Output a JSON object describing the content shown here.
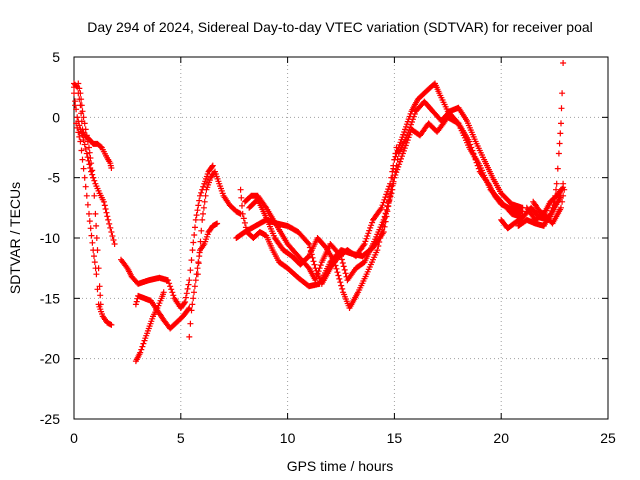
{
  "chart_data": {
    "type": "scatter",
    "title": "Day 294 of 2024, Sidereal Day-to-day VTEC variation (SDTVAR) for receiver poal",
    "xlabel": "GPS time / hours",
    "ylabel": "SDTVAR / TECUs",
    "xlim": [
      0,
      25
    ],
    "ylim": [
      -25,
      5
    ],
    "xticks": [
      0,
      5,
      10,
      15,
      20,
      25
    ],
    "yticks": [
      -25,
      -20,
      -15,
      -10,
      -5,
      0,
      5
    ],
    "grid": true,
    "marker": "+",
    "series": [
      {
        "name": "SDTVAR",
        "color": "#ff0000",
        "tracks": [
          [
            [
              0.0,
              2.8
            ],
            [
              0.15,
              2.5
            ],
            [
              0.3,
              1.0
            ],
            [
              0.4,
              -1.0
            ],
            [
              0.5,
              -1.5
            ],
            [
              0.7,
              -1.8
            ],
            [
              0.9,
              -2.2
            ],
            [
              1.1,
              -2.2
            ],
            [
              1.3,
              -2.5
            ],
            [
              1.5,
              -3.2
            ],
            [
              1.7,
              -3.8
            ],
            [
              1.75,
              -4.2
            ]
          ],
          [
            [
              0.0,
              2.5
            ],
            [
              0.1,
              -0.5
            ],
            [
              0.3,
              -2.0
            ],
            [
              0.5,
              -5.0
            ],
            [
              0.7,
              -8.0
            ],
            [
              0.9,
              -11.0
            ],
            [
              1.05,
              -13.0
            ],
            [
              1.15,
              -15.5
            ],
            [
              1.35,
              -16.5
            ],
            [
              1.55,
              -17.0
            ],
            [
              1.75,
              -17.2
            ]
          ],
          [
            [
              0.0,
              2.0
            ],
            [
              0.15,
              0.0
            ],
            [
              0.3,
              -1.0
            ],
            [
              0.4,
              -1.5
            ],
            [
              0.6,
              -3.0
            ],
            [
              0.8,
              -4.5
            ],
            [
              1.0,
              -5.5
            ],
            [
              1.2,
              -6.3
            ],
            [
              1.4,
              -7.0
            ],
            [
              1.6,
              -8.5
            ],
            [
              1.9,
              -10.5
            ]
          ],
          [
            [
              0.2,
              2.8
            ],
            [
              0.3,
              2.0
            ],
            [
              0.4,
              0.5
            ],
            [
              0.5,
              -0.5
            ],
            [
              0.6,
              -1.5
            ],
            [
              0.7,
              -2.5
            ],
            [
              0.8,
              -3.8
            ],
            [
              0.9,
              -5.0
            ],
            [
              1.0,
              -8.0
            ],
            [
              1.1,
              -11.0
            ],
            [
              1.2,
              -14.0
            ],
            [
              1.25,
              -15.5
            ]
          ],
          [
            [
              2.2,
              -11.8
            ],
            [
              2.5,
              -12.5
            ],
            [
              2.7,
              -13.2
            ],
            [
              3.0,
              -13.8
            ],
            [
              3.5,
              -13.5
            ],
            [
              4.0,
              -13.3
            ],
            [
              4.4,
              -13.5
            ],
            [
              4.7,
              -15.0
            ],
            [
              5.0,
              -15.8
            ],
            [
              5.2,
              -15.3
            ],
            [
              5.4,
              -13.5
            ],
            [
              5.55,
              -11.0
            ],
            [
              5.7,
              -8.5
            ],
            [
              5.9,
              -6.5
            ],
            [
              6.1,
              -5.5
            ],
            [
              6.3,
              -4.5
            ],
            [
              6.5,
              -4.0
            ]
          ],
          [
            [
              2.9,
              -15.5
            ],
            [
              3.0,
              -14.8
            ],
            [
              3.3,
              -15.0
            ],
            [
              3.6,
              -15.2
            ],
            [
              3.9,
              -16.0
            ],
            [
              4.2,
              -16.8
            ],
            [
              4.5,
              -17.5
            ],
            [
              4.8,
              -17.0
            ],
            [
              5.1,
              -16.5
            ],
            [
              5.4,
              -15.8
            ]
          ],
          [
            [
              2.9,
              -20.2
            ],
            [
              3.1,
              -19.5
            ],
            [
              3.3,
              -18.5
            ],
            [
              3.5,
              -17.5
            ],
            [
              3.7,
              -16.5
            ],
            [
              3.9,
              -15.8
            ],
            [
              4.1,
              -15.0
            ],
            [
              4.2,
              -14.5
            ]
          ],
          [
            [
              5.4,
              -18.2
            ],
            [
              5.5,
              -16.0
            ],
            [
              5.7,
              -13.5
            ],
            [
              5.9,
              -11.0
            ],
            [
              6.1,
              -10.5
            ],
            [
              6.3,
              -9.5
            ],
            [
              6.5,
              -9.0
            ],
            [
              6.7,
              -8.8
            ]
          ],
          [
            [
              5.8,
              -13.0
            ],
            [
              6.0,
              -8.5
            ],
            [
              6.2,
              -6.0
            ],
            [
              6.4,
              -5.0
            ],
            [
              6.6,
              -4.5
            ],
            [
              6.8,
              -5.5
            ],
            [
              7.0,
              -6.5
            ],
            [
              7.3,
              -7.3
            ],
            [
              7.6,
              -7.8
            ],
            [
              7.8,
              -8.0
            ]
          ],
          [
            [
              7.8,
              -6.0
            ],
            [
              7.9,
              -8.0
            ],
            [
              8.1,
              -9.5
            ],
            [
              8.4,
              -10.0
            ],
            [
              8.7,
              -9.5
            ],
            [
              9.0,
              -9.8
            ],
            [
              9.3,
              -11.0
            ],
            [
              9.6,
              -12.0
            ],
            [
              10.0,
              -12.5
            ],
            [
              10.5,
              -13.3
            ],
            [
              11.0,
              -14.0
            ],
            [
              11.5,
              -13.8
            ],
            [
              12.0,
              -12.0
            ],
            [
              12.5,
              -11.0
            ],
            [
              13.0,
              -11.3
            ],
            [
              13.5,
              -11.5
            ],
            [
              14.0,
              -10.8
            ],
            [
              14.5,
              -9.5
            ],
            [
              14.8,
              -6.5
            ],
            [
              15.0,
              -3.5
            ],
            [
              15.2,
              -2.5
            ],
            [
              15.5,
              -1.0
            ],
            [
              15.8,
              0.5
            ],
            [
              16.1,
              1.5
            ],
            [
              16.4,
              2.0
            ],
            [
              16.7,
              2.5
            ],
            [
              16.9,
              2.8
            ],
            [
              17.1,
              2.0
            ],
            [
              17.5,
              0.5
            ],
            [
              18.0,
              -0.5
            ],
            [
              18.5,
              -2.0
            ],
            [
              19.0,
              -4.5
            ],
            [
              19.4,
              -5.5
            ],
            [
              19.7,
              -6.5
            ],
            [
              20.0,
              -7.2
            ],
            [
              20.5,
              -7.6
            ],
            [
              21.0,
              -7.8
            ]
          ],
          [
            [
              8.0,
              -7.0
            ],
            [
              8.3,
              -6.5
            ],
            [
              8.6,
              -6.5
            ],
            [
              9.0,
              -7.5
            ],
            [
              9.5,
              -9.0
            ],
            [
              10.0,
              -10.5
            ],
            [
              10.5,
              -11.5
            ],
            [
              11.0,
              -12.5
            ],
            [
              11.3,
              -13.5
            ],
            [
              11.6,
              -12.0
            ],
            [
              12.0,
              -10.5
            ],
            [
              12.5,
              -11.5
            ],
            [
              12.8,
              -13.5
            ],
            [
              13.2,
              -12.5
            ],
            [
              13.6,
              -12.0
            ],
            [
              14.0,
              -10.5
            ],
            [
              14.5,
              -8.5
            ],
            [
              14.9,
              -6.0
            ],
            [
              15.2,
              -3.0
            ],
            [
              15.6,
              -1.5
            ],
            [
              16.0,
              0.5
            ],
            [
              16.4,
              1.3
            ],
            [
              16.8,
              0.5
            ],
            [
              17.2,
              -0.3
            ],
            [
              17.6,
              0.5
            ],
            [
              18.0,
              0.8
            ],
            [
              18.4,
              -0.3
            ],
            [
              18.8,
              -2.0
            ],
            [
              19.2,
              -3.5
            ],
            [
              19.6,
              -5.0
            ],
            [
              20.0,
              -6.3
            ],
            [
              20.5,
              -7.2
            ],
            [
              21.0,
              -7.5
            ]
          ],
          [
            [
              8.2,
              -7.5
            ],
            [
              8.6,
              -6.8
            ],
            [
              9.0,
              -8.3
            ],
            [
              9.4,
              -10.0
            ],
            [
              9.8,
              -11.0
            ],
            [
              10.2,
              -11.5
            ],
            [
              10.6,
              -12.2
            ],
            [
              11.0,
              -11.5
            ],
            [
              11.4,
              -10.0
            ],
            [
              11.8,
              -10.8
            ],
            [
              12.2,
              -12.0
            ],
            [
              12.6,
              -14.5
            ],
            [
              12.9,
              -15.8
            ],
            [
              13.3,
              -14.5
            ],
            [
              13.7,
              -13.0
            ],
            [
              14.2,
              -11.0
            ],
            [
              14.6,
              -8.0
            ],
            [
              15.0,
              -5.0
            ],
            [
              15.4,
              -3.0
            ],
            [
              15.8,
              -1.0
            ],
            [
              16.2,
              -1.5
            ],
            [
              16.6,
              -0.5
            ],
            [
              17.0,
              -1.2
            ],
            [
              17.5,
              0.0
            ],
            [
              18.0,
              -0.5
            ],
            [
              18.5,
              -2.5
            ],
            [
              19.0,
              -4.0
            ],
            [
              19.5,
              -6.0
            ],
            [
              20.0,
              -7.0
            ],
            [
              20.5,
              -8.0
            ],
            [
              21.0,
              -8.3
            ]
          ],
          [
            [
              7.6,
              -10.0
            ],
            [
              8.0,
              -9.5
            ],
            [
              8.5,
              -9.0
            ],
            [
              9.0,
              -8.5
            ],
            [
              9.5,
              -8.8
            ],
            [
              10.0,
              -9.0
            ],
            [
              10.5,
              -9.5
            ],
            [
              11.0,
              -10.5
            ],
            [
              11.3,
              -12.5
            ],
            [
              11.6,
              -13.8
            ],
            [
              12.0,
              -12.5
            ],
            [
              12.4,
              -11.5
            ],
            [
              12.8,
              -11.0
            ],
            [
              13.2,
              -11.5
            ],
            [
              13.6,
              -10.5
            ],
            [
              14.0,
              -8.5
            ],
            [
              14.4,
              -7.5
            ],
            [
              14.8,
              -5.5
            ],
            [
              15.1,
              -2.5
            ]
          ],
          [
            [
              20.0,
              -8.5
            ],
            [
              20.3,
              -9.2
            ],
            [
              20.6,
              -8.8
            ],
            [
              21.0,
              -8.3
            ],
            [
              21.4,
              -7.5
            ],
            [
              21.8,
              -8.3
            ],
            [
              22.2,
              -8.5
            ],
            [
              22.5,
              -7.5
            ],
            [
              22.8,
              -6.5
            ],
            [
              22.9,
              -5.5
            ]
          ],
          [
            [
              20.8,
              -9.0
            ],
            [
              21.2,
              -8.5
            ],
            [
              21.6,
              -8.8
            ],
            [
              22.0,
              -9.0
            ],
            [
              22.3,
              -8.0
            ],
            [
              22.5,
              -7.0
            ],
            [
              22.6,
              -5.5
            ],
            [
              22.7,
              -3.0
            ],
            [
              22.8,
              -0.5
            ],
            [
              22.85,
              2.0
            ],
            [
              22.9,
              4.5
            ]
          ],
          [
            [
              21.5,
              -7.0
            ],
            [
              21.8,
              -7.8
            ],
            [
              22.0,
              -8.0
            ],
            [
              22.3,
              -7.0
            ],
            [
              22.6,
              -6.5
            ],
            [
              22.9,
              -5.8
            ]
          ],
          [
            [
              21.2,
              -7.5
            ],
            [
              21.6,
              -8.5
            ],
            [
              22.0,
              -8.0
            ],
            [
              22.4,
              -8.8
            ],
            [
              22.8,
              -7.5
            ],
            [
              22.95,
              -6.0
            ]
          ]
        ]
      }
    ]
  }
}
